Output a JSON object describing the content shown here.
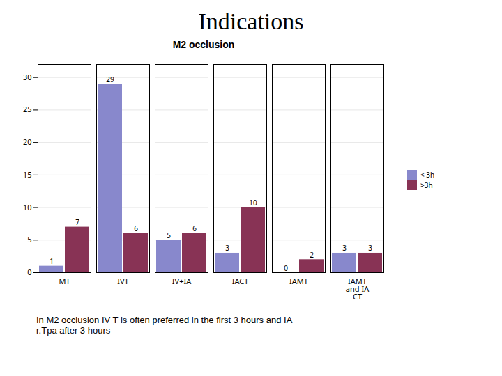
{
  "chart_data": {
    "type": "bar",
    "title": "Indications",
    "subtitle": "M2 occlusion",
    "categories": [
      "MT",
      "IVT",
      "IV+IA",
      "IACT",
      "IAMT",
      "IAMT\nand IA\nCT"
    ],
    "series": [
      {
        "name": "< 3h",
        "color": "#8888cc",
        "values": [
          1,
          29,
          5,
          3,
          0,
          3
        ]
      },
      {
        "name": ">3h",
        "color": "#883355",
        "values": [
          7,
          6,
          6,
          10,
          2,
          3
        ]
      }
    ],
    "ylim": [
      0,
      32
    ],
    "yticks": [
      0,
      5,
      10,
      15,
      20,
      25,
      30
    ],
    "grid": true,
    "legend": "right",
    "data_labels": true,
    "annotation": "In M2 occlusion IV T is often preferred in the first 3 hours and IA\nr.Tpa after 3 hours"
  }
}
